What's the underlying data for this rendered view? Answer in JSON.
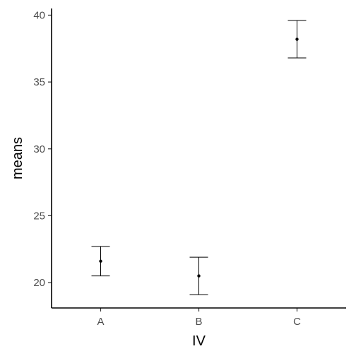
{
  "chart_data": {
    "type": "scatter",
    "title": "",
    "xlabel": "IV",
    "ylabel": "means",
    "categories": [
      "A",
      "B",
      "C"
    ],
    "series": [
      {
        "values": [
          21.6,
          20.5,
          38.2
        ],
        "error_low": [
          20.5,
          19.1,
          36.8
        ],
        "error_high": [
          22.7,
          21.9,
          39.6
        ]
      }
    ],
    "ylim": [
      18.1,
      40.5
    ],
    "yticks": [
      20,
      25,
      30,
      35,
      40
    ],
    "grid": false,
    "legend": "none"
  }
}
